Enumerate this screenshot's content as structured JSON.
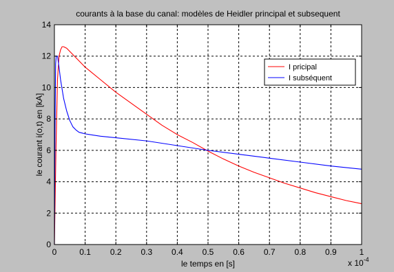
{
  "chart_data": {
    "type": "line",
    "title": "courants à la base du canal: modèles de Heidler principal et subsequent",
    "xlabel": "le temps en [s]",
    "ylabel": "le courant i(o,t) en [kA]",
    "x_multiplier_label": "x 10",
    "x_multiplier_exponent": "-4",
    "xlim": [
      0,
      1
    ],
    "ylim": [
      0,
      14
    ],
    "xticks": [
      0,
      0.1,
      0.2,
      0.3,
      0.4,
      0.5,
      0.6,
      0.7,
      0.8,
      0.9,
      1
    ],
    "xtick_labels": [
      "0",
      "0.1",
      "0.2",
      "0.3",
      "0.4",
      "0.5",
      "0.6",
      "0.7",
      "0.8",
      "0.9",
      "1"
    ],
    "yticks": [
      0,
      2,
      4,
      6,
      8,
      10,
      12,
      14
    ],
    "ytick_labels": [
      "0",
      "2",
      "4",
      "6",
      "8",
      "10",
      "12",
      "14"
    ],
    "grid": true,
    "legend_position": "top-right",
    "series": [
      {
        "name": "I pricipal",
        "color": "#ff0000",
        "x": [
          0,
          0.005,
          0.01,
          0.015,
          0.02,
          0.025,
          0.03,
          0.04,
          0.05,
          0.07,
          0.1,
          0.15,
          0.2,
          0.25,
          0.3,
          0.35,
          0.4,
          0.45,
          0.5,
          0.55,
          0.6,
          0.65,
          0.7,
          0.75,
          0.8,
          0.85,
          0.9,
          0.95,
          1.0
        ],
        "values": [
          0,
          6.0,
          10.5,
          12.0,
          12.4,
          12.6,
          12.6,
          12.5,
          12.3,
          11.9,
          11.3,
          10.5,
          9.7,
          9.0,
          8.3,
          7.6,
          7.0,
          6.5,
          5.95,
          5.45,
          5.0,
          4.6,
          4.25,
          3.9,
          3.6,
          3.3,
          3.05,
          2.8,
          2.6
        ]
      },
      {
        "name": "I subséquent",
        "color": "#0000ff",
        "x": [
          0,
          0.002,
          0.004,
          0.006,
          0.01,
          0.015,
          0.02,
          0.03,
          0.04,
          0.05,
          0.06,
          0.07,
          0.08,
          0.09,
          0.1,
          0.15,
          0.2,
          0.3,
          0.4,
          0.5,
          0.6,
          0.7,
          0.8,
          0.9,
          1.0
        ],
        "values": [
          0,
          7.5,
          11.5,
          12.0,
          12.0,
          11.3,
          10.5,
          9.3,
          8.5,
          7.9,
          7.5,
          7.3,
          7.15,
          7.1,
          7.05,
          6.9,
          6.8,
          6.6,
          6.3,
          6.0,
          5.75,
          5.5,
          5.25,
          5.0,
          4.8
        ]
      }
    ]
  }
}
